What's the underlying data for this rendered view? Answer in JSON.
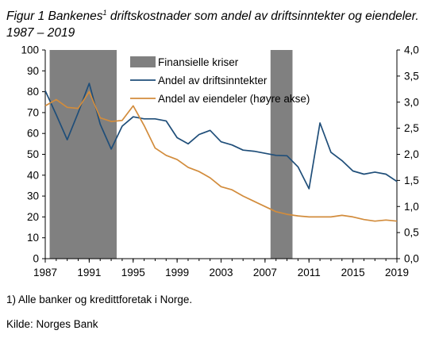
{
  "title": {
    "prefix": "Figur 1 Bankenes",
    "sup": "1",
    "rest": " driftskostnader som andel av driftsinntekter og eiendeler. 1987 – 2019"
  },
  "footnote": "1) Alle banker og kredittforetak i Norge.",
  "source": "Kilde: Norges Bank",
  "colors": {
    "crisis": "#808080",
    "income_line": "#1f4e79",
    "assets_line": "#d28c3c"
  },
  "chart_data": {
    "type": "line",
    "x_tick_labels": [
      "1987",
      "1991",
      "1995",
      "1999",
      "2003",
      "2007",
      "2011",
      "2015",
      "2019"
    ],
    "x_range": [
      1987,
      2019
    ],
    "y_left": {
      "range": [
        0,
        100
      ],
      "tick_labels": [
        "0",
        "10",
        "20",
        "30",
        "40",
        "50",
        "60",
        "70",
        "80",
        "90",
        "100"
      ]
    },
    "y_right": {
      "range": [
        0,
        4
      ],
      "tick_labels": [
        "0,0",
        "0,5",
        "1,0",
        "1,5",
        "2,0",
        "2,5",
        "3,0",
        "3,5",
        "4,0"
      ]
    },
    "crisis_periods": [
      [
        1987.4,
        1993.5
      ],
      [
        2007.5,
        2009.5
      ]
    ],
    "legend": {
      "placement": "top-center",
      "items": [
        "Finansielle kriser",
        "Andel av driftsinntekter",
        "Andel av eiendeler (høyre akse)"
      ]
    },
    "series": [
      {
        "name": "Andel av driftsinntekter",
        "axis": "left",
        "x": [
          1987,
          1988,
          1989,
          1990,
          1991,
          1992,
          1993,
          1994,
          1995,
          1996,
          1997,
          1998,
          1999,
          2000,
          2001,
          2002,
          2003,
          2004,
          2005,
          2006,
          2007,
          2008,
          2009,
          2010,
          2011,
          2012,
          2013,
          2014,
          2015,
          2016,
          2017,
          2018,
          2019
        ],
        "values": [
          80.5,
          69,
          57,
          70,
          84,
          64.5,
          52.5,
          63.5,
          68,
          67,
          67,
          66,
          58,
          55,
          59.5,
          61.5,
          56,
          54.5,
          52,
          51.5,
          50.5,
          49.5,
          49.3,
          44,
          33.5,
          65,
          51,
          47,
          42,
          40.5,
          41.5,
          40.5,
          37
        ]
      },
      {
        "name": "Andel av eiendeler (høyre akse)",
        "axis": "right",
        "x": [
          1987,
          1988,
          1989,
          1990,
          1991,
          1992,
          1993,
          1994,
          1995,
          1996,
          1997,
          1998,
          1999,
          2000,
          2001,
          2002,
          2003,
          2004,
          2005,
          2006,
          2007,
          2008,
          2009,
          2010,
          2011,
          2012,
          2013,
          2014,
          2015,
          2016,
          2017,
          2018,
          2019
        ],
        "values": [
          2.93,
          3.05,
          2.9,
          2.88,
          3.2,
          2.7,
          2.63,
          2.65,
          2.93,
          2.55,
          2.12,
          1.98,
          1.9,
          1.75,
          1.67,
          1.55,
          1.38,
          1.32,
          1.2,
          1.1,
          1.0,
          0.9,
          0.85,
          0.82,
          0.8,
          0.8,
          0.8,
          0.83,
          0.8,
          0.75,
          0.72,
          0.74,
          0.72
        ]
      }
    ]
  }
}
